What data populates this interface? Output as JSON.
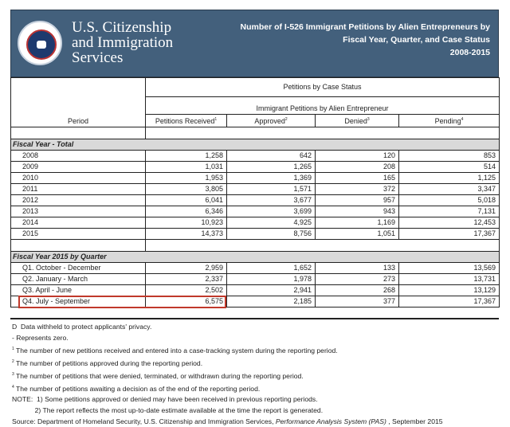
{
  "header": {
    "agency_lines": [
      "U.S. Citizenship",
      "and Immigration",
      "Services"
    ],
    "seal_text": "U.S. Department of Homeland Security",
    "title_lines": [
      "Number of I-526 Immigrant Petitions by Alien Entrepreneurs by",
      "Fiscal Year, Quarter, and Case Status",
      "2008-2015"
    ],
    "color": "#43607c"
  },
  "table": {
    "group_header": "Petitions by Case Status",
    "sub_header": "Immigrant Petitions by Alien Entrepreneur",
    "period_label": "Period",
    "columns": [
      {
        "label": "Petitions Received",
        "sup": "1"
      },
      {
        "label": "Approved",
        "sup": "2"
      },
      {
        "label": "Denied",
        "sup": "3"
      },
      {
        "label": "Pending",
        "sup": "4"
      }
    ],
    "sections": [
      {
        "label": "Fiscal Year - Total",
        "rows": [
          [
            "2008",
            "1,258",
            "642",
            "120",
            "853"
          ],
          [
            "2009",
            "1,031",
            "1,265",
            "208",
            "514"
          ],
          [
            "2010",
            "1,953",
            "1,369",
            "165",
            "1,125"
          ],
          [
            "2011",
            "3,805",
            "1,571",
            "372",
            "3,347"
          ],
          [
            "2012",
            "6,041",
            "3,677",
            "957",
            "5,018"
          ],
          [
            "2013",
            "6,346",
            "3,699",
            "943",
            "7,131"
          ],
          [
            "2014",
            "10,923",
            "4,925",
            "1,169",
            "12,453"
          ],
          [
            "2015",
            "14,373",
            "8,756",
            "1,051",
            "17,367"
          ]
        ]
      },
      {
        "label": "Fiscal Year 2015 by Quarter",
        "rows": [
          [
            "Q1. October - December",
            "2,959",
            "1,652",
            "133",
            "13,569"
          ],
          [
            "Q2. January - March",
            "2,337",
            "1,978",
            "273",
            "13,731"
          ],
          [
            "Q3. April - June",
            "2,502",
            "2,941",
            "268",
            "13,129"
          ],
          [
            "Q4. July - September",
            "6,575",
            "2,185",
            "377",
            "17,367"
          ]
        ]
      }
    ],
    "highlight_color": "#c0392b"
  },
  "notes": [
    {
      "sup": "",
      "text": "D  Data withheld to protect applicants' privacy."
    },
    {
      "sup": "",
      "text": "- Represents zero."
    },
    {
      "sup": "1",
      "text": " The number of new petitions received and entered into a case-tracking system during the reporting period."
    },
    {
      "sup": "2",
      "text": " The number of petitions approved during the reporting period."
    },
    {
      "sup": "3",
      "text": " The number of petitions that were denied, terminated, or withdrawn during the reporting period."
    },
    {
      "sup": "4",
      "text": " The number of petitions awaiting a decision as of the end of the reporting period."
    },
    {
      "sup": "",
      "text": "NOTE:  1) Some petitions approved or denied may have been received in previous reporting periods."
    },
    {
      "sup": "",
      "text": "            2) The report reflects the most up-to-date estimate available at the time the report is generated."
    }
  ],
  "source": {
    "prefix": "Source:  Department of Homeland Security, U.S. Citizenship and Immigration Services, ",
    "italic": "Performance Analysis System (PAS)",
    "suffix": " , September 2015"
  }
}
